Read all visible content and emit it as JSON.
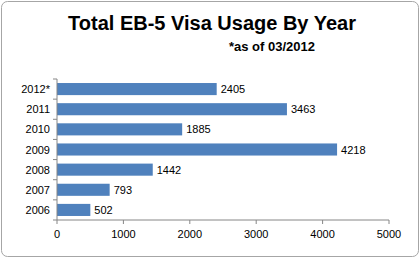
{
  "chart_data": {
    "type": "bar",
    "orientation": "horizontal",
    "title": "Total EB-5 Visa Usage By Year",
    "subtitle": "*as of 03/2012",
    "categories": [
      "2006",
      "2007",
      "2008",
      "2009",
      "2010",
      "2011",
      "2012*"
    ],
    "values": [
      502,
      793,
      1442,
      4218,
      1885,
      3463,
      2405
    ],
    "color": "#4f81bd",
    "xlim": [
      0,
      5000
    ],
    "xticks": [
      0,
      1000,
      2000,
      3000,
      4000,
      5000
    ],
    "grid": false,
    "data_labels": true
  }
}
